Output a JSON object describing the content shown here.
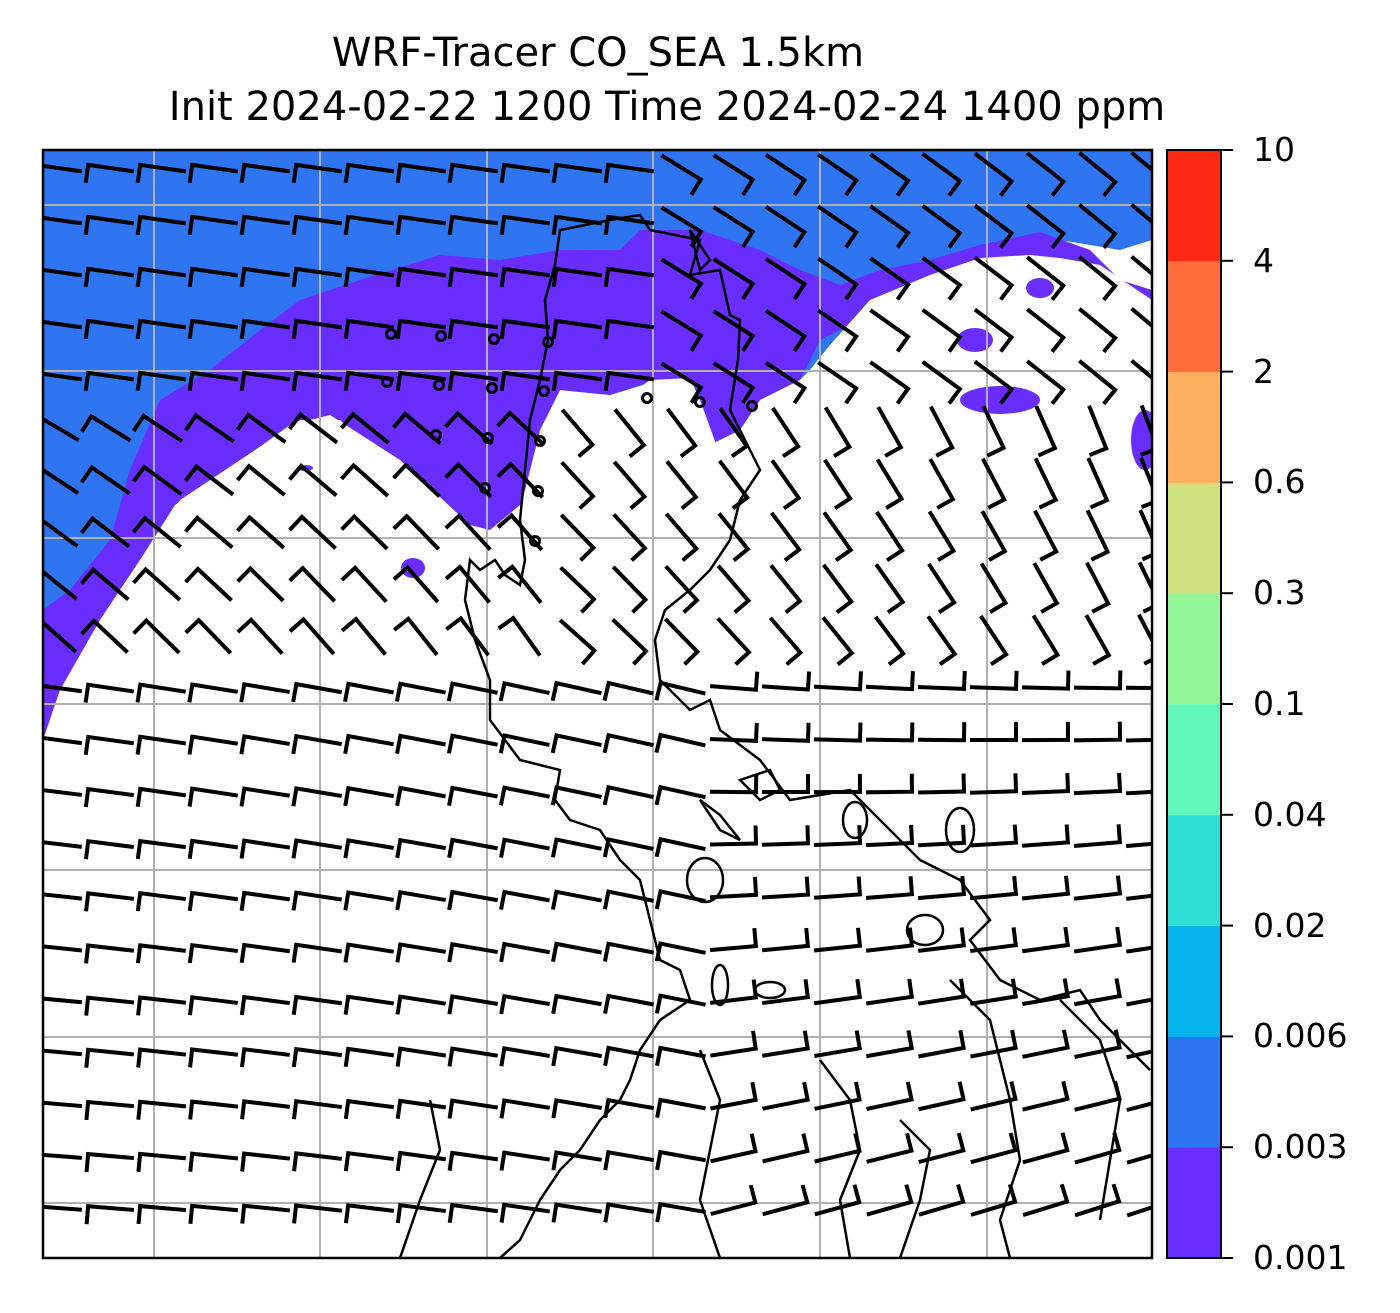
{
  "title": {
    "line1": "WRF-Tracer CO_SEA 1.5km",
    "line2": "Init 2024-02-22 1200 Time 2024-02-24 1400 ppm"
  },
  "colorbar": {
    "levels": [
      "0.001",
      "0.003",
      "0.006",
      "0.02",
      "0.04",
      "0.1",
      "0.3",
      "0.6",
      "2",
      "4",
      "10"
    ],
    "colors": [
      "#6a2dff",
      "#2f74f0",
      "#04b3ea",
      "#2ddfd4",
      "#62f7bb",
      "#93f79a",
      "#cfe07f",
      "#fcb060",
      "#ff6d3a",
      "#ff2a14"
    ]
  },
  "map": {
    "concentration_colors": {
      "band_0.001_0.003": "#6a2dff",
      "band_0.003_0.006": "#2f74f0"
    },
    "wind_barbs": "black",
    "gridlines": "light gray"
  }
}
